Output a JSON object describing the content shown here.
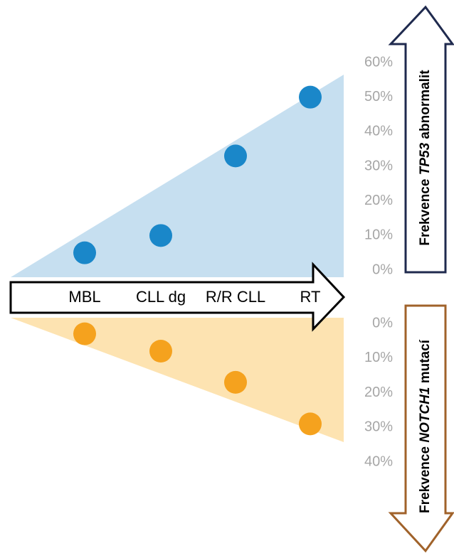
{
  "chart_data": [
    {
      "type": "scatter",
      "categories": [
        "MBL",
        "CLL dg",
        "R/R CLL",
        "RT"
      ],
      "ylabel": [
        "Frekvence ",
        "TP53",
        " abnormalit"
      ],
      "ylim": [
        0,
        60
      ],
      "yticks": [
        {
          "value": 0,
          "label": "0%"
        },
        {
          "value": 10,
          "label": "10%"
        },
        {
          "value": 20,
          "label": "20%"
        },
        {
          "value": 30,
          "label": "30%"
        },
        {
          "value": 40,
          "label": "40%"
        },
        {
          "value": 50,
          "label": "50%"
        },
        {
          "value": 60,
          "label": "60%"
        }
      ],
      "series": [
        {
          "color": "#1a87c9",
          "values": [
            5,
            10,
            33,
            50
          ]
        }
      ]
    },
    {
      "type": "scatter",
      "ylabel": [
        "Frekvence ",
        "NOTCH1",
        " mutací"
      ],
      "ylim": [
        0,
        40
      ],
      "y_reversed": true,
      "yticks": [
        {
          "value": 0,
          "label": "0%"
        },
        {
          "value": 10,
          "label": "10%"
        },
        {
          "value": 20,
          "label": "20%"
        },
        {
          "value": 30,
          "label": "30%"
        },
        {
          "value": 40,
          "label": "40%"
        }
      ],
      "series": [
        {
          "color": "#f5a21e",
          "values": [
            3,
            8,
            17,
            29
          ]
        }
      ]
    }
  ]
}
